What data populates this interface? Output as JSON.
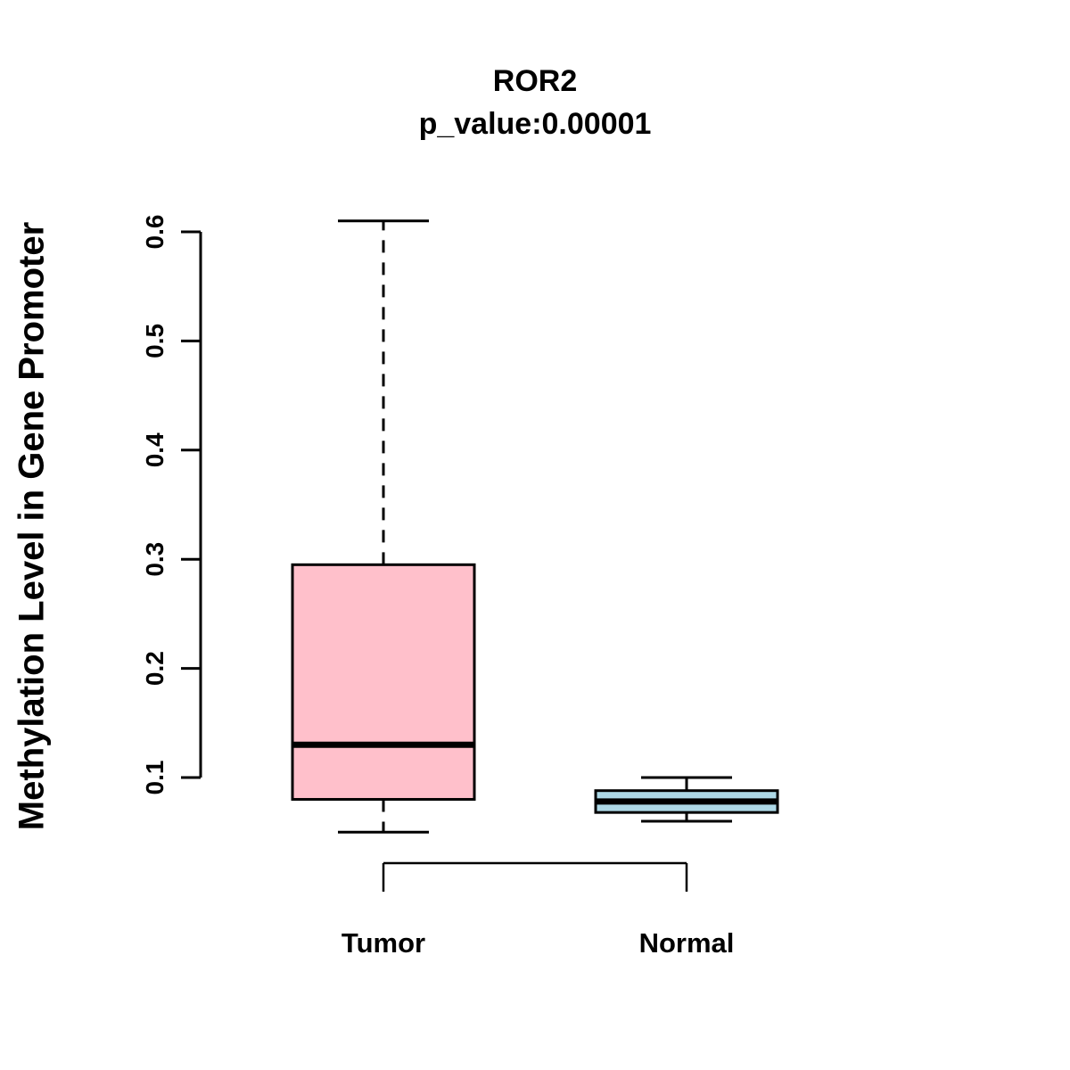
{
  "chart_data": {
    "type": "boxplot",
    "title": "ROR2",
    "subtitle": "p_value:0.00001",
    "ylabel": "Methylation Level in Gene Promoter",
    "xlabel": "",
    "categories": [
      "Tumor",
      "Normal"
    ],
    "y_ticks": [
      0.1,
      0.2,
      0.3,
      0.4,
      0.5,
      0.6
    ],
    "ylim": [
      0.04,
      0.62
    ],
    "grid": false,
    "legend": "none",
    "series": [
      {
        "name": "Tumor",
        "color": "#FFC0CB",
        "border_color": "#000000",
        "whisker_low": 0.05,
        "q1": 0.08,
        "median": 0.13,
        "q3": 0.295,
        "whisker_high": 0.61
      },
      {
        "name": "Normal",
        "color": "#ADD8E6",
        "border_color": "#000000",
        "whisker_low": 0.06,
        "q1": 0.068,
        "median": 0.078,
        "q3": 0.088,
        "whisker_high": 0.1
      }
    ],
    "comparison_bracket": {
      "between": [
        "Tumor",
        "Normal"
      ],
      "label": ""
    }
  }
}
